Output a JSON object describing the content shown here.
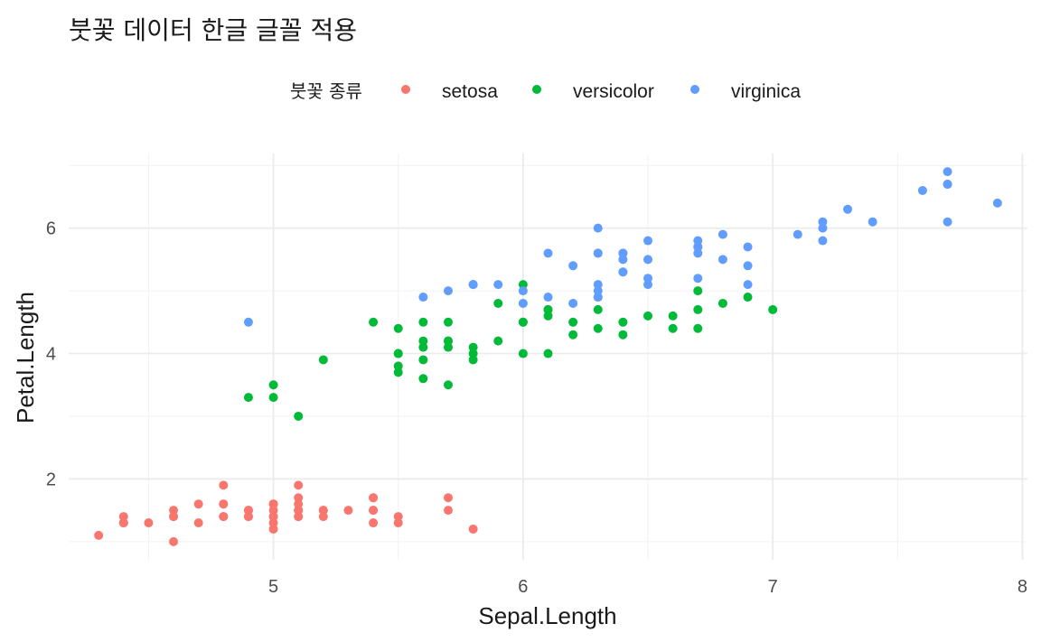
{
  "title": "붓꽃 데이터 한글 글꼴 적용",
  "legend": {
    "title": "붓꽃 종류",
    "position": "top"
  },
  "chart_data": {
    "type": "scatter",
    "title": "붓꽃 데이터 한글 글꼴 적용",
    "xlabel": "Sepal.Length",
    "ylabel": "Petal.Length",
    "xlim": [
      4.18,
      8.02
    ],
    "ylim": [
      0.71,
      7.19
    ],
    "xticks": [
      5,
      6,
      7,
      8
    ],
    "yticks": [
      2,
      4,
      6
    ],
    "grid": true,
    "series": [
      {
        "name": "setosa",
        "color": "#F8766D",
        "points": [
          [
            5.1,
            1.4
          ],
          [
            4.9,
            1.4
          ],
          [
            4.7,
            1.3
          ],
          [
            4.6,
            1.5
          ],
          [
            5.0,
            1.4
          ],
          [
            5.4,
            1.7
          ],
          [
            4.6,
            1.4
          ],
          [
            5.0,
            1.5
          ],
          [
            4.4,
            1.4
          ],
          [
            4.9,
            1.5
          ],
          [
            5.4,
            1.5
          ],
          [
            4.8,
            1.6
          ],
          [
            4.8,
            1.4
          ],
          [
            4.3,
            1.1
          ],
          [
            5.8,
            1.2
          ],
          [
            5.7,
            1.5
          ],
          [
            5.4,
            1.3
          ],
          [
            5.1,
            1.4
          ],
          [
            5.7,
            1.7
          ],
          [
            5.1,
            1.5
          ],
          [
            5.4,
            1.7
          ],
          [
            5.1,
            1.5
          ],
          [
            4.6,
            1.0
          ],
          [
            5.1,
            1.7
          ],
          [
            4.8,
            1.9
          ],
          [
            5.0,
            1.6
          ],
          [
            5.0,
            1.6
          ],
          [
            5.2,
            1.5
          ],
          [
            5.2,
            1.4
          ],
          [
            4.7,
            1.6
          ],
          [
            4.8,
            1.6
          ],
          [
            5.4,
            1.5
          ],
          [
            5.2,
            1.5
          ],
          [
            5.5,
            1.4
          ],
          [
            4.9,
            1.5
          ],
          [
            5.0,
            1.2
          ],
          [
            5.5,
            1.3
          ],
          [
            4.9,
            1.4
          ],
          [
            4.4,
            1.3
          ],
          [
            5.1,
            1.5
          ],
          [
            5.0,
            1.3
          ],
          [
            4.5,
            1.3
          ],
          [
            4.4,
            1.3
          ],
          [
            5.0,
            1.6
          ],
          [
            5.1,
            1.9
          ],
          [
            4.8,
            1.4
          ],
          [
            5.1,
            1.6
          ],
          [
            4.6,
            1.4
          ],
          [
            5.3,
            1.5
          ],
          [
            5.0,
            1.4
          ]
        ]
      },
      {
        "name": "versicolor",
        "color": "#00BA38",
        "points": [
          [
            7.0,
            4.7
          ],
          [
            6.4,
            4.5
          ],
          [
            6.9,
            4.9
          ],
          [
            5.5,
            4.0
          ],
          [
            6.5,
            4.6
          ],
          [
            5.7,
            4.5
          ],
          [
            6.3,
            4.7
          ],
          [
            4.9,
            3.3
          ],
          [
            6.6,
            4.6
          ],
          [
            5.2,
            3.9
          ],
          [
            5.0,
            3.5
          ],
          [
            5.9,
            4.2
          ],
          [
            6.0,
            4.0
          ],
          [
            6.1,
            4.7
          ],
          [
            5.6,
            3.6
          ],
          [
            6.7,
            4.4
          ],
          [
            5.6,
            4.5
          ],
          [
            5.8,
            4.1
          ],
          [
            6.2,
            4.5
          ],
          [
            5.6,
            3.9
          ],
          [
            5.9,
            4.8
          ],
          [
            6.1,
            4.0
          ],
          [
            6.3,
            4.9
          ],
          [
            6.1,
            4.7
          ],
          [
            6.4,
            4.3
          ],
          [
            6.6,
            4.4
          ],
          [
            6.8,
            4.8
          ],
          [
            6.7,
            5.0
          ],
          [
            6.0,
            4.5
          ],
          [
            5.7,
            3.5
          ],
          [
            5.5,
            3.8
          ],
          [
            5.5,
            3.7
          ],
          [
            5.8,
            3.9
          ],
          [
            6.0,
            5.1
          ],
          [
            5.4,
            4.5
          ],
          [
            6.0,
            4.5
          ],
          [
            6.7,
            4.7
          ],
          [
            6.3,
            4.4
          ],
          [
            5.6,
            4.1
          ],
          [
            5.5,
            4.0
          ],
          [
            5.5,
            4.4
          ],
          [
            6.1,
            4.6
          ],
          [
            5.8,
            4.0
          ],
          [
            5.0,
            3.3
          ],
          [
            5.6,
            4.2
          ],
          [
            5.7,
            4.2
          ],
          [
            5.7,
            4.2
          ],
          [
            6.2,
            4.3
          ],
          [
            5.1,
            3.0
          ],
          [
            5.7,
            4.1
          ]
        ]
      },
      {
        "name": "virginica",
        "color": "#619CFF",
        "points": [
          [
            6.3,
            6.0
          ],
          [
            5.8,
            5.1
          ],
          [
            7.1,
            5.9
          ],
          [
            6.3,
            5.6
          ],
          [
            6.5,
            5.8
          ],
          [
            7.6,
            6.6
          ],
          [
            4.9,
            4.5
          ],
          [
            7.3,
            6.3
          ],
          [
            6.7,
            5.8
          ],
          [
            7.2,
            6.1
          ],
          [
            6.5,
            5.1
          ],
          [
            6.4,
            5.3
          ],
          [
            6.8,
            5.5
          ],
          [
            5.7,
            5.0
          ],
          [
            5.8,
            5.1
          ],
          [
            6.4,
            5.3
          ],
          [
            6.5,
            5.5
          ],
          [
            7.7,
            6.7
          ],
          [
            7.7,
            6.9
          ],
          [
            6.0,
            5.0
          ],
          [
            6.9,
            5.7
          ],
          [
            5.6,
            4.9
          ],
          [
            7.7,
            6.7
          ],
          [
            6.3,
            4.9
          ],
          [
            6.7,
            5.7
          ],
          [
            7.2,
            6.0
          ],
          [
            6.2,
            4.8
          ],
          [
            6.1,
            4.9
          ],
          [
            6.4,
            5.6
          ],
          [
            7.2,
            5.8
          ],
          [
            7.4,
            6.1
          ],
          [
            7.9,
            6.4
          ],
          [
            6.4,
            5.6
          ],
          [
            6.3,
            5.1
          ],
          [
            6.1,
            5.6
          ],
          [
            7.7,
            6.1
          ],
          [
            6.3,
            5.6
          ],
          [
            6.4,
            5.5
          ],
          [
            6.0,
            4.8
          ],
          [
            6.9,
            5.4
          ],
          [
            6.7,
            5.6
          ],
          [
            6.9,
            5.1
          ],
          [
            5.8,
            5.1
          ],
          [
            6.8,
            5.9
          ],
          [
            6.7,
            5.7
          ],
          [
            6.7,
            5.2
          ],
          [
            6.3,
            5.0
          ],
          [
            6.5,
            5.2
          ],
          [
            6.2,
            5.4
          ],
          [
            5.9,
            5.1
          ]
        ]
      }
    ]
  }
}
